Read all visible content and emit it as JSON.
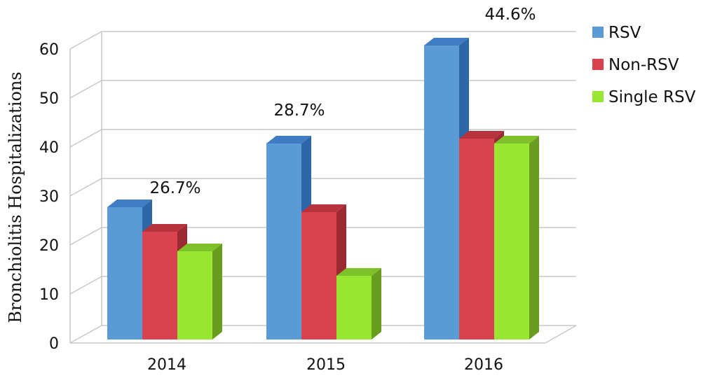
{
  "chart_data": {
    "type": "bar",
    "style": "3d-clustered-column",
    "categories": [
      "2014",
      "2015",
      "2016"
    ],
    "series": [
      {
        "name": "RSV",
        "values": [
          27,
          40,
          60
        ],
        "color": "#5b9bd5",
        "side_color": "#2e67a8",
        "top_color": "#3f7cc4"
      },
      {
        "name": "Non-RSV",
        "values": [
          22,
          26,
          41
        ],
        "color": "#d9434f",
        "side_color": "#9b2a33",
        "top_color": "#b6323c"
      },
      {
        "name": "Single RSV",
        "values": [
          18,
          13,
          40
        ],
        "color": "#99e633",
        "side_color": "#6a9c1f",
        "top_color": "#7fc12a"
      }
    ],
    "annotations": [
      "26.7%",
      "28.7%",
      "44.6%"
    ],
    "ylabel": "Bronchiolitis Hospitalizations",
    "xlabel": "",
    "ylim": [
      0,
      60
    ],
    "yticks": [
      "0",
      "10",
      "20",
      "30",
      "40",
      "50",
      "60"
    ],
    "grid": true,
    "legend_position": "right"
  }
}
